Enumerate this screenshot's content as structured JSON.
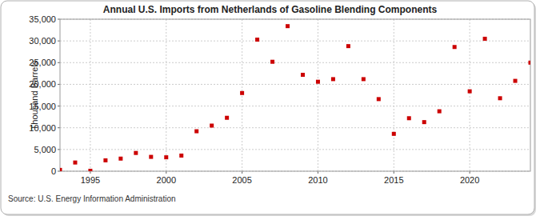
{
  "chart_data": {
    "type": "scatter",
    "title": "Annual U.S. Imports from Netherlands of Gasoline Blending Components",
    "y_label": "Thousand Barrels",
    "source": "Source: U.S. Energy Information Administration",
    "x": [
      1993,
      1994,
      1995,
      1996,
      1997,
      1998,
      1999,
      2000,
      2001,
      2002,
      2003,
      2004,
      2005,
      2006,
      2007,
      2008,
      2009,
      2010,
      2011,
      2012,
      2013,
      2014,
      2015,
      2016,
      2017,
      2018,
      2019,
      2020,
      2021,
      2022,
      2023,
      2024
    ],
    "values": [
      300,
      2000,
      100,
      2500,
      2900,
      4200,
      3300,
      3200,
      3600,
      9200,
      10500,
      12300,
      18000,
      30300,
      25200,
      33400,
      22200,
      20600,
      21200,
      28800,
      21200,
      16600,
      8600,
      12200,
      11300,
      13800,
      28600,
      18400,
      30500,
      16800,
      20800,
      25000
    ],
    "color": "#cc0000",
    "marker": "square",
    "xlim": [
      1993,
      2024
    ],
    "xticks": [
      1995,
      2000,
      2005,
      2010,
      2015,
      2020
    ],
    "ylim": [
      0,
      35000
    ],
    "yticks": [
      0,
      {
        "value": 5000,
        "label": "5,000"
      },
      {
        "value": 10000,
        "label": "10,000"
      },
      {
        "value": 15000,
        "label": "15,000"
      },
      {
        "value": 20000,
        "label": "20,000"
      },
      {
        "value": 25000,
        "label": "25,000"
      },
      {
        "value": 30000,
        "label": "30,000"
      },
      {
        "value": 35000,
        "label": "35,000"
      }
    ],
    "grid": true
  }
}
